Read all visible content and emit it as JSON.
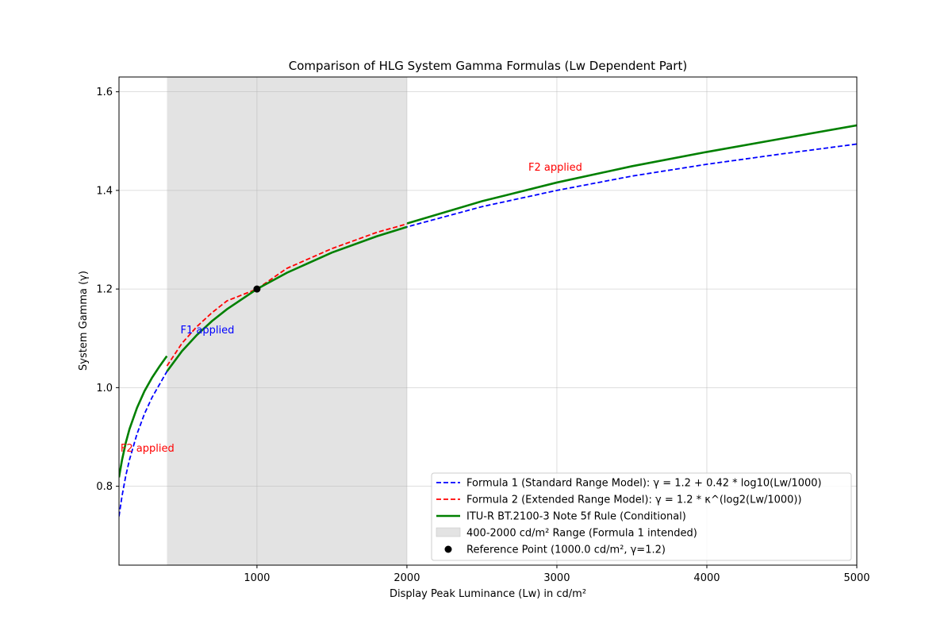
{
  "chart_data": {
    "type": "line",
    "title": "Comparison of HLG System Gamma Formulas (Lw Dependent Part)",
    "xlabel": "Display Peak Luminance (Lw) in cd/m²",
    "ylabel": "System Gamma (γ)",
    "xlim": [
      80,
      5000
    ],
    "ylim": [
      0.64,
      1.63
    ],
    "xticks": [
      1000,
      2000,
      3000,
      4000,
      5000
    ],
    "yticks": [
      0.8,
      1.0,
      1.2,
      1.4,
      1.6
    ],
    "xtick_labels": [
      "1000",
      "2000",
      "3000",
      "4000",
      "5000"
    ],
    "ytick_labels": [
      "0.8",
      "1.0",
      "1.2",
      "1.4",
      "1.6"
    ],
    "grid": true,
    "legend_position": "lower-right",
    "shaded_range": {
      "x0": 400,
      "x1": 2000,
      "label": "400-2000 cd/m² Range (Formula 1 intended)",
      "color": "#e3e3e3"
    },
    "series": [
      {
        "name": "Formula 1 (Standard Range Model): γ = 1.2 + 0.42 * log10(Lw/1000)",
        "color": "#0000ff",
        "style": "dashed",
        "x": [
          80,
          100,
          125,
          150,
          200,
          250,
          300,
          400,
          500,
          600,
          700,
          800,
          1000,
          1200,
          1500,
          1800,
          2000,
          2500,
          3000,
          3500,
          4000,
          4500,
          5000
        ],
        "y": [
          0.739,
          0.78,
          0.821,
          0.854,
          0.906,
          0.947,
          0.98,
          1.033,
          1.074,
          1.107,
          1.135,
          1.159,
          1.2,
          1.233,
          1.274,
          1.307,
          1.326,
          1.367,
          1.4,
          1.429,
          1.453,
          1.474,
          1.494
        ]
      },
      {
        "name": "Formula 2 (Extended Range Model): γ = 1.2 * κ^(log2(Lw/1000))",
        "color": "#ff0000",
        "style": "dashed",
        "x": [
          400,
          500,
          600,
          700,
          800,
          1000,
          1200,
          1500,
          1800,
          2000
        ],
        "y": [
          1.044,
          1.09,
          1.124,
          1.152,
          1.176,
          1.2,
          1.242,
          1.282,
          1.315,
          1.332
        ]
      },
      {
        "name": "ITU-R BT.2100-3 Note 5f Rule (Conditional)",
        "color": "#008000",
        "style": "solid",
        "segments": [
          {
            "x": [
              80,
              100,
              125,
              150,
              200,
              250,
              300,
              350,
              399
            ],
            "y": [
              0.818,
              0.853,
              0.888,
              0.916,
              0.959,
              0.993,
              1.02,
              1.043,
              1.064
            ]
          },
          {
            "x": [
              400,
              500,
              600,
              700,
              800,
              1000,
              1200,
              1500,
              1800,
              2000
            ],
            "y": [
              1.033,
              1.074,
              1.107,
              1.135,
              1.159,
              1.2,
              1.233,
              1.274,
              1.307,
              1.326
            ]
          },
          {
            "x": [
              2001,
              2500,
              3000,
              3500,
              4000,
              4500,
              5000
            ],
            "y": [
              1.333,
              1.378,
              1.416,
              1.449,
              1.478,
              1.505,
              1.532
            ]
          }
        ]
      }
    ],
    "reference_point": {
      "name": "Reference Point (1000.0 cd/m², γ=1.2)",
      "x": 1000,
      "y": 1.2,
      "color": "#000000"
    },
    "annotations": [
      {
        "text": "F2 applied",
        "x": 90,
        "y": 0.87,
        "color": "#ff0000"
      },
      {
        "text": "F1 applied",
        "x": 490,
        "y": 1.11,
        "color": "#0000ff"
      },
      {
        "text": "F2 applied",
        "x": 2810,
        "y": 1.44,
        "color": "#ff0000"
      }
    ]
  }
}
